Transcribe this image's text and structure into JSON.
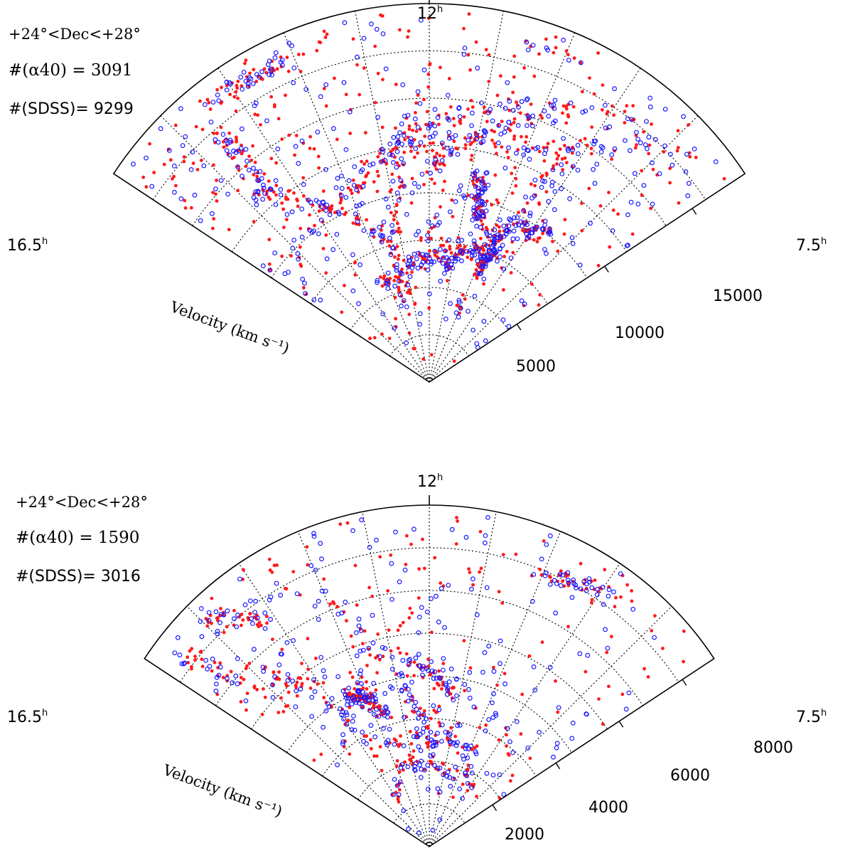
{
  "colors": {
    "alfalfa": "#1a1aff",
    "sdss": "#ff1a1a",
    "grid": "#000000",
    "frame": "#000000"
  },
  "chart_data": [
    {
      "type": "scatter",
      "projection": "polar-wedge",
      "ra_left_label": "16.5",
      "ra_right_label": "7.5",
      "ra_center_label": "12",
      "ra_unit": "h",
      "ra_range": [
        7.5,
        16.5
      ],
      "radial_label": "Velocity (km s⁻¹)",
      "radial_range": [
        0,
        18000
      ],
      "radial_ticks": [
        "5000",
        "10000",
        "15000"
      ],
      "radial_tick_values": [
        5000,
        10000,
        15000
      ],
      "grid": true,
      "annotations": [
        "+24°<Dec<+28°",
        "#(α40) = 3091",
        "#(SDSS)= 9299"
      ],
      "series": [
        {
          "name": "α40",
          "marker": "open-circle",
          "count": 3091
        },
        {
          "name": "SDSS",
          "marker": "filled-dot",
          "count": 9299
        }
      ]
    },
    {
      "type": "scatter",
      "projection": "polar-wedge",
      "ra_left_label": "16.5",
      "ra_right_label": "7.5",
      "ra_center_label": "12",
      "ra_unit": "h",
      "ra_range": [
        7.5,
        16.5
      ],
      "radial_label": "Velocity (km s⁻¹)",
      "radial_range": [
        0,
        9000
      ],
      "radial_ticks": [
        "2000",
        "4000",
        "6000",
        "8000"
      ],
      "radial_tick_values": [
        2000,
        4000,
        6000,
        8000
      ],
      "grid": true,
      "annotations": [
        "+24°<Dec<+28°",
        "#(α40) = 1590",
        "#(SDSS)= 3016"
      ],
      "series": [
        {
          "name": "α40",
          "marker": "open-circle",
          "count": 1590
        },
        {
          "name": "SDSS",
          "marker": "filled-dot",
          "count": 3016
        }
      ]
    }
  ]
}
